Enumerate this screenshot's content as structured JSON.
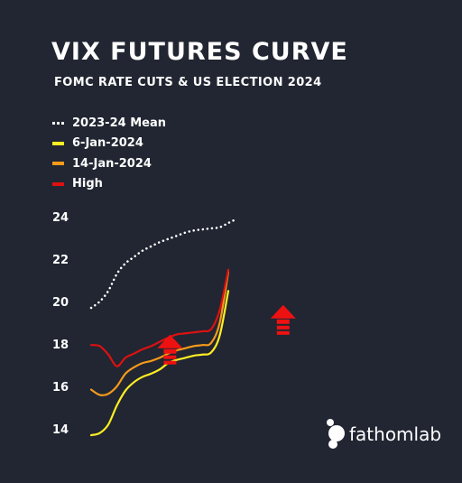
{
  "header": {
    "title": "VIX FUTURES CURVE",
    "subtitle": "FOMC RATE CUTS & US ELECTION 2024"
  },
  "brand": {
    "name": "fathomlab",
    "icon": "fathomlab-logo-icon"
  },
  "colors": {
    "background": "#212632",
    "mean": "#ffffff",
    "jan6": "#ffee22",
    "jan14": "#f59a1a",
    "high": "#dd1111",
    "arrow": "#ee1111"
  },
  "chart_data": {
    "type": "line",
    "x": [
      0,
      0.5,
      1,
      1.5,
      2,
      2.5,
      3,
      3.5,
      4,
      4.5,
      5,
      5.5,
      6,
      6.5,
      7,
      7.5,
      8,
      8.5,
      9
    ],
    "ylim": [
      13,
      24.5
    ],
    "yticks": [
      "14",
      "16",
      "18",
      "20",
      "22",
      "24"
    ],
    "grid": false,
    "legend_position": "top-left",
    "series": [
      {
        "name": "2023-24 Mean",
        "style": "dotted",
        "color": "#ffffff",
        "values": [
          19.7,
          20.0,
          20.5,
          21.3,
          21.8,
          22.1,
          22.4,
          22.6,
          22.8,
          22.95,
          23.1,
          23.25,
          23.35,
          23.4,
          23.45,
          23.5,
          23.7,
          23.9,
          null
        ]
      },
      {
        "name": "6-Jan-2024",
        "style": "solid",
        "color": "#ffee22",
        "values": [
          13.7,
          13.8,
          14.2,
          15.1,
          15.8,
          16.2,
          16.45,
          16.6,
          16.8,
          17.1,
          17.25,
          17.35,
          17.45,
          17.5,
          17.6,
          18.4,
          20.5,
          null,
          null
        ]
      },
      {
        "name": "14-Jan-2024",
        "style": "solid",
        "color": "#f59a1a",
        "values": [
          15.85,
          15.6,
          15.65,
          16.0,
          16.6,
          16.9,
          17.1,
          17.2,
          17.35,
          17.55,
          17.7,
          17.8,
          17.9,
          17.95,
          18.05,
          19.0,
          21.4,
          null,
          null
        ]
      },
      {
        "name": "High",
        "style": "solid",
        "color": "#dd1111",
        "values": [
          17.95,
          17.9,
          17.5,
          16.95,
          17.35,
          17.55,
          17.75,
          17.9,
          18.1,
          18.3,
          18.45,
          18.5,
          18.55,
          18.6,
          18.7,
          19.6,
          21.5,
          null,
          null
        ]
      }
    ],
    "annotations": [
      {
        "type": "up-arrow",
        "x": 4.6,
        "y": 17.8
      },
      {
        "type": "up-arrow",
        "x": 11.2,
        "y": 19.2
      }
    ]
  }
}
